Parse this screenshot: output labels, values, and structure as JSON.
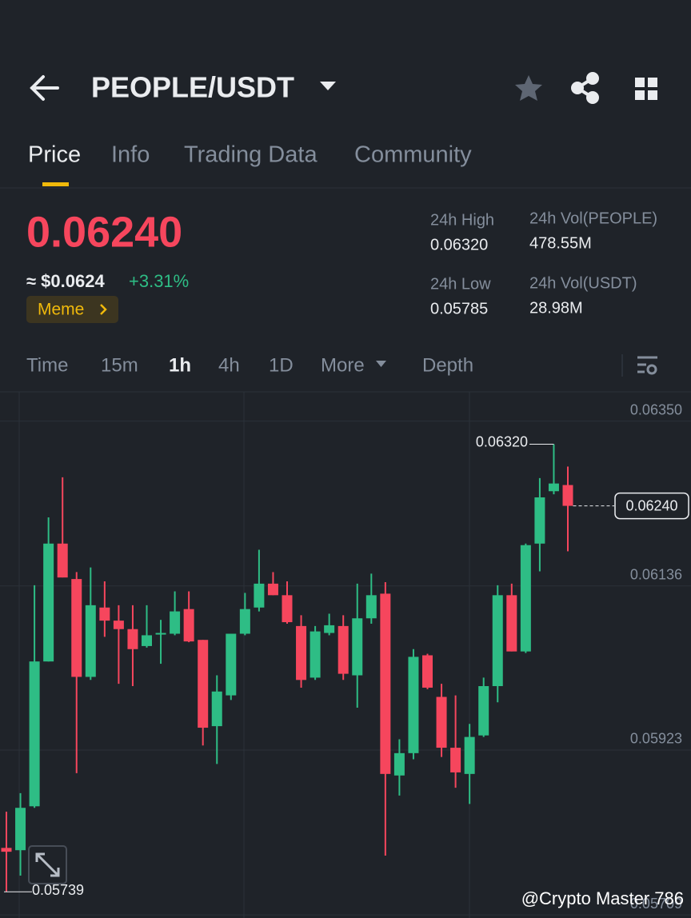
{
  "header": {
    "pair": "PEOPLE/USDT",
    "tabs": [
      "Price",
      "Info",
      "Trading Data",
      "Community"
    ]
  },
  "ticker": {
    "last": "0.06240",
    "usd": "≈ $0.0624",
    "change": "+3.31%",
    "tag": "Meme",
    "stats": [
      {
        "label": "24h High",
        "value": "0.06320"
      },
      {
        "label": "24h Vol(PEOPLE)",
        "value": "478.55M"
      },
      {
        "label": "24h Low",
        "value": "0.05785"
      },
      {
        "label": "24h Vol(USDT)",
        "value": "28.98M"
      }
    ]
  },
  "intervals": [
    "Time",
    "15m",
    "1h",
    "4h",
    "1D",
    "More",
    "Depth"
  ],
  "chart_data": {
    "type": "candlestick",
    "up_color": "#2ebd85",
    "down_color": "#f6465d",
    "open": [
      0.05796,
      0.05793,
      0.0585,
      0.06038,
      0.06191,
      0.06145,
      0.06018,
      0.06108,
      0.06091,
      0.0608,
      0.06058,
      0.06073,
      0.06074,
      0.06106,
      0.06066,
      0.05954,
      0.05994,
      0.06074,
      0.06108,
      0.06139,
      0.06124,
      0.06084,
      0.06017,
      0.06075,
      0.06084,
      0.0602,
      0.06094,
      0.06126,
      0.0589,
      0.05919,
      0.06046,
      0.05992,
      0.05926,
      0.05892,
      0.05942,
      0.06006,
      0.06124,
      0.06051,
      0.06191,
      0.06259,
      0.06267
    ],
    "high": [
      0.05843,
      0.05867,
      0.06137,
      0.06225,
      0.06277,
      0.06154,
      0.0616,
      0.06142,
      0.06111,
      0.06111,
      0.06111,
      0.06092,
      0.06129,
      0.06129,
      0.06066,
      0.0602,
      0.06074,
      0.06127,
      0.06183,
      0.06154,
      0.06142,
      0.06098,
      0.06084,
      0.061,
      0.06098,
      0.06139,
      0.06152,
      0.06141,
      0.05937,
      0.06054,
      0.06048,
      0.06009,
      0.05994,
      0.05957,
      0.06017,
      0.06137,
      0.06139,
      0.06191,
      0.06276,
      0.0632,
      0.06291
    ],
    "low": [
      0.05739,
      0.0576,
      0.05848,
      0.06038,
      0.06147,
      0.05893,
      0.06014,
      0.0607,
      0.06009,
      0.06006,
      0.06056,
      0.06035,
      0.06072,
      0.06063,
      0.05929,
      0.05905,
      0.05988,
      0.06072,
      0.06103,
      0.06124,
      0.06087,
      0.06004,
      0.06014,
      0.06072,
      0.06014,
      0.05978,
      0.06087,
      0.05786,
      0.05864,
      0.05911,
      0.06002,
      0.05914,
      0.05874,
      0.05853,
      0.0594,
      0.05985,
      0.06051,
      0.06049,
      0.06155,
      0.06255,
      0.06181
    ],
    "close": [
      0.05791,
      0.05848,
      0.06038,
      0.06191,
      0.06147,
      0.06018,
      0.06111,
      0.06091,
      0.0608,
      0.06054,
      0.06072,
      0.06075,
      0.06103,
      0.06064,
      0.05952,
      0.05999,
      0.06074,
      0.06106,
      0.06139,
      0.06124,
      0.06089,
      0.06014,
      0.06077,
      0.06085,
      0.06022,
      0.06094,
      0.06124,
      0.05892,
      0.05919,
      0.06044,
      0.06004,
      0.05926,
      0.05894,
      0.0594,
      0.06006,
      0.06124,
      0.06051,
      0.06189,
      0.06251,
      0.06269,
      0.0624
    ],
    "ylim": [
      0.05705,
      0.06388
    ],
    "yticks": [
      {
        "value": 0.0635,
        "label": "0.06350"
      },
      0.06136,
      0.05923,
      0.05709
    ],
    "grid": true,
    "max_label": {
      "value": 0.0632,
      "label": "0.06320"
    },
    "min_label": {
      "value": 0.05739,
      "label": "0.05739"
    },
    "last_label": {
      "value": 0.0624,
      "label": "0.06240"
    }
  },
  "watermark": "@Crypto Master 786"
}
